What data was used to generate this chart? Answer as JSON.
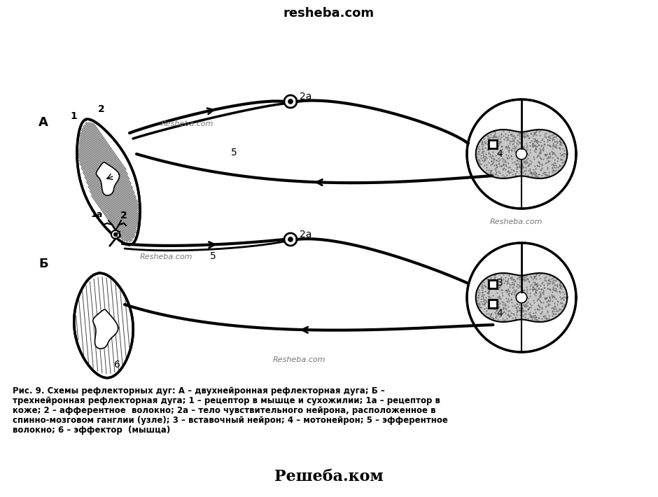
{
  "title_top": "resheba.com",
  "title_bottom": "Решеба.ком",
  "wm_A_left": "Resheba.com",
  "wm_A_right": "Resheba.com",
  "wm_B_left": "Resheba.com",
  "wm_B_right": "Resheba.com",
  "label_A": "А",
  "label_B": "Б",
  "caption_line1": "Рис. 9. Схемы рефлекторных дуг: А – двухнейронная рефлекторная дуга; Б –",
  "caption_line2": "трехнейронная рефлекторная дуга; 1 – рецептор в мышце и сухожилии; 1а – рецептор в",
  "caption_line3": "коже; 2 – афферентное  волокно; 2а – тело чувствительного нейрона, расположенное в",
  "caption_line4": "спинно-мозговом ганглии (узле); 3 – вставочный нейрон; 4 – мотонейрон; 5 – эфферентное",
  "caption_line5": "волокно; 6 – эффектор  (мышца)",
  "bg_color": "#ffffff",
  "line_color": "#000000",
  "text_color": "#000000"
}
